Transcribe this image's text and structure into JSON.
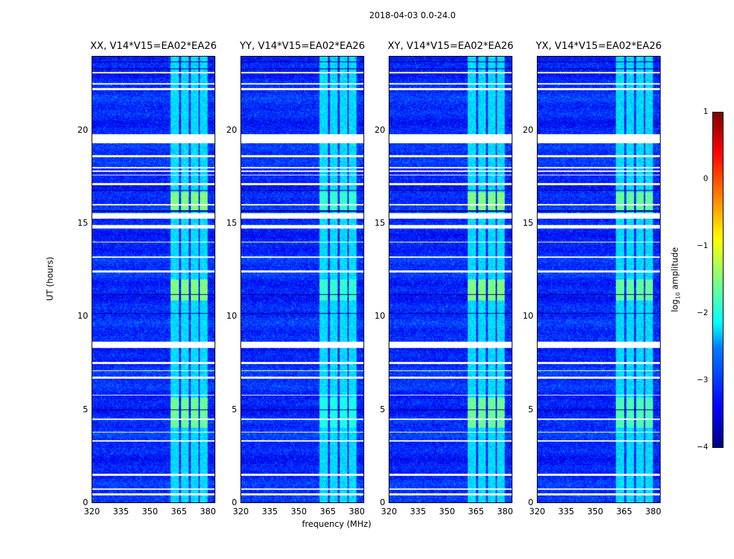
{
  "chart_data": {
    "type": "heatmap",
    "suptitle": "2018-04-03 0.0-24.0",
    "panels": [
      {
        "title": "XX, V14*V15=EA02*EA26",
        "rfi_gain": 1.0
      },
      {
        "title": "YY, V14*V15=EA02*EA26",
        "rfi_gain": 1.25
      },
      {
        "title": "XY, V14*V15=EA02*EA26",
        "rfi_gain": 1.0
      },
      {
        "title": "YX, V14*V15=EA02*EA26",
        "rfi_gain": 1.1
      }
    ],
    "xlabel": "frequency (MHz)",
    "ylabel": "UT (hours)",
    "xlim": [
      320,
      384
    ],
    "ylim": [
      0,
      24
    ],
    "xticks": [
      "320",
      "335",
      "350",
      "365",
      "380"
    ],
    "yticks": [
      "0",
      "5",
      "10",
      "15",
      "20"
    ],
    "colorbar": {
      "label": "log10 amplitude",
      "label_main": "log",
      "label_sub": "10",
      "label_rest": " amplitude",
      "range": [
        -4,
        1
      ],
      "ticks": [
        "1",
        "0",
        "−1",
        "−2",
        "−3",
        "−4"
      ]
    },
    "background_level": -3.2,
    "rfi_bands_mhz": [
      [
        360.5,
        365
      ],
      [
        366,
        370
      ],
      [
        371,
        375
      ],
      [
        376,
        380
      ]
    ],
    "rfi_level": -2.3,
    "strong_rfi_hours": [
      [
        4.05,
        5.7,
        -1.6
      ],
      [
        10.9,
        12.0,
        -1.5
      ],
      [
        15.7,
        16.7,
        -1.5
      ]
    ],
    "flagged_hours": [
      [
        0.45,
        0.55
      ],
      [
        0.75,
        0.8
      ],
      [
        1.5,
        1.6
      ],
      [
        3.3,
        3.4
      ],
      [
        3.8,
        3.85
      ],
      [
        4.5,
        4.55
      ],
      [
        5.8,
        5.85
      ],
      [
        6.7,
        6.8
      ],
      [
        7.1,
        7.15
      ],
      [
        7.5,
        7.6
      ],
      [
        8.35,
        8.7
      ],
      [
        12.4,
        12.5
      ],
      [
        13.2,
        13.25
      ],
      [
        14.0,
        14.05
      ],
      [
        14.75,
        14.95
      ],
      [
        15.3,
        15.6
      ],
      [
        16.0,
        16.05
      ],
      [
        17.1,
        17.2
      ],
      [
        17.6,
        17.65
      ],
      [
        17.8,
        17.85
      ],
      [
        18.0,
        18.05
      ],
      [
        18.6,
        18.7
      ],
      [
        19.35,
        19.8
      ],
      [
        22.2,
        22.3
      ],
      [
        22.5,
        22.55
      ],
      [
        23.1,
        23.15
      ]
    ],
    "dark_hours": [
      [
        0.9,
        0.93
      ],
      [
        5.0,
        5.03
      ],
      [
        10.2,
        10.23
      ],
      [
        11.2,
        11.23
      ],
      [
        15.65,
        15.72
      ],
      [
        16.8,
        16.83
      ],
      [
        23.3,
        23.33
      ],
      [
        23.7,
        23.73
      ]
    ]
  }
}
